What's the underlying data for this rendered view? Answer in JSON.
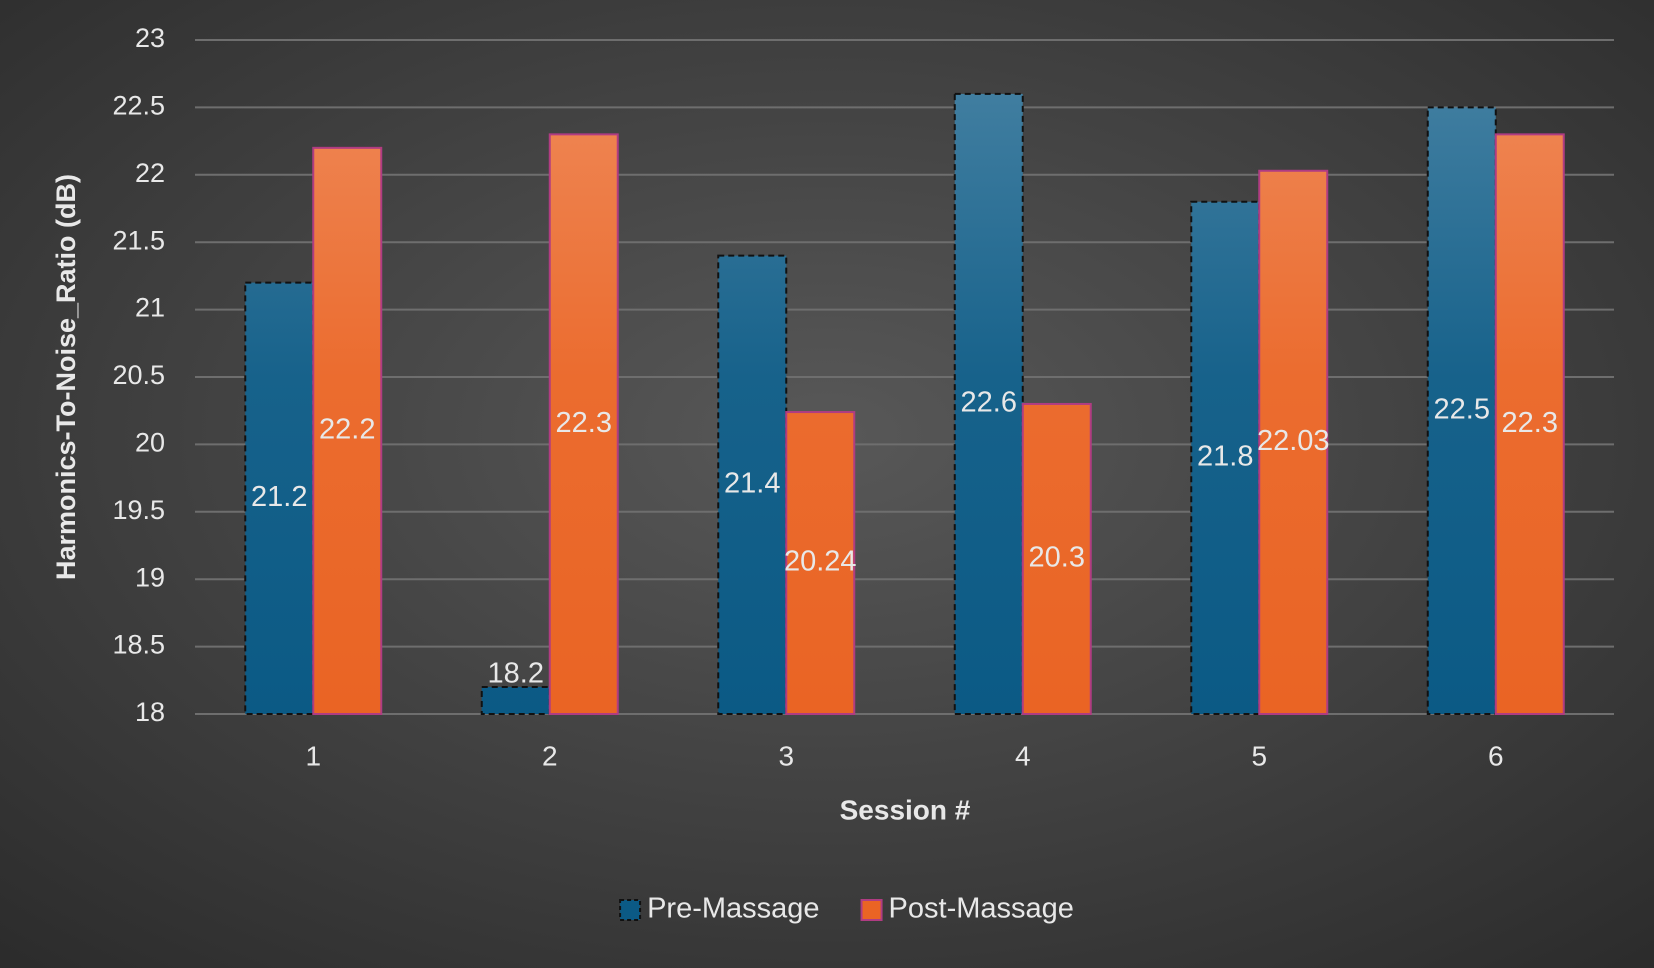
{
  "chart_data": {
    "type": "bar",
    "y_label": "Harmonics-To-Noise_Ratio (dB)",
    "x_label": "Session #",
    "categories": [
      "1",
      "2",
      "3",
      "4",
      "5",
      "6"
    ],
    "series": [
      {
        "name": "Pre-Massage",
        "color": "#0b5a85",
        "values": [
          21.2,
          18.2,
          21.4,
          22.6,
          21.8,
          22.5
        ]
      },
      {
        "name": "Post-Massage",
        "color": "#ea6424",
        "values": [
          22.2,
          22.3,
          20.24,
          20.3,
          22.03,
          22.3
        ]
      }
    ],
    "ylim": [
      18,
      23
    ],
    "yticks": [
      18,
      18.5,
      19,
      19.5,
      20,
      20.5,
      21,
      21.5,
      22,
      22.5,
      23
    ],
    "grid": true,
    "legend": "bottom"
  }
}
